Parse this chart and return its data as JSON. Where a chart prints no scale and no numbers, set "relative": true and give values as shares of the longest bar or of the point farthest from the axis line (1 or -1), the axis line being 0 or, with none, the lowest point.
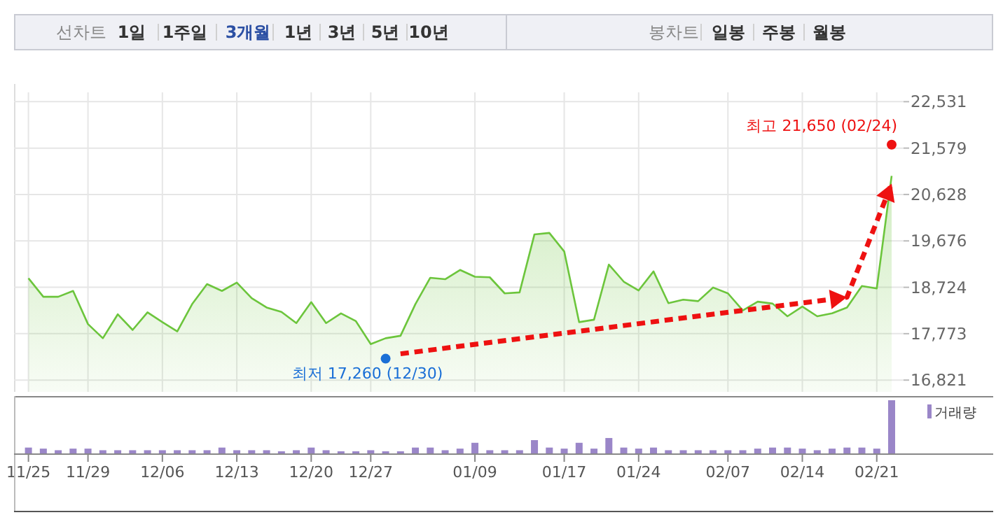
{
  "chart_data": [
    {
      "type": "other",
      "annotations": [
        "선차트",
        "1일",
        "1주일",
        "3개월",
        "1년",
        "3년",
        "5년",
        "10년",
        "봉차트",
        "일봉",
        "주봉",
        "월봉"
      ],
      "colors": [
        "#888888",
        "#333333",
        "#333333",
        "#2b4fa3",
        "#333333",
        "#333333",
        "#333333",
        "#333333",
        "#888888",
        "#333333",
        "#333333",
        "#333333"
      ]
    },
    {
      "type": "area",
      "categories": [
        "11/25",
        null,
        null,
        null,
        "11/29",
        null,
        null,
        null,
        null,
        "12/06",
        null,
        null,
        null,
        null,
        "12/13",
        null,
        null,
        null,
        null,
        "12/20",
        null,
        null,
        null,
        "12/27",
        null,
        null,
        null,
        null,
        null,
        null,
        "01/09",
        null,
        null,
        null,
        null,
        null,
        "01/17",
        null,
        null,
        null,
        null,
        "01/24",
        null,
        null,
        null,
        null,
        null,
        "02/07",
        null,
        null,
        null,
        null,
        "02/14",
        null,
        null,
        null,
        null,
        "02/21",
        null
      ],
      "series": [
        {
          "type": "area",
          "color": "#6cc53c",
          "values": [
            18910,
            18530,
            18530,
            18650,
            17970,
            17680,
            18170,
            17850,
            18210,
            18010,
            17820,
            18380,
            18790,
            18650,
            18820,
            18500,
            18310,
            18220,
            17990,
            18420,
            17990,
            18190,
            18030,
            17560,
            17680,
            17730,
            18380,
            18920,
            18890,
            19080,
            18940,
            18930,
            18600,
            18620,
            19810,
            19840,
            19460,
            18010,
            18060,
            19190,
            18840,
            18660,
            19050,
            18400,
            18470,
            18440,
            18720,
            18600,
            18250,
            18430,
            18390,
            18130,
            18330,
            18130,
            18190,
            18310,
            18750,
            18700,
            21010
          ]
        },
        {
          "type": "scatter",
          "color": "#1a6fd6",
          "values": [
            null,
            null,
            null,
            null,
            null,
            null,
            null,
            null,
            null,
            null,
            null,
            null,
            null,
            null,
            null,
            null,
            null,
            null,
            null,
            null,
            null,
            null,
            null,
            null,
            17260,
            null,
            null,
            null,
            null,
            null,
            null,
            null,
            null,
            null,
            null,
            null,
            null,
            null,
            null,
            null,
            null,
            null,
            null,
            null,
            null,
            null,
            null,
            null,
            null,
            null,
            null,
            null,
            null,
            null,
            null,
            null,
            null,
            null,
            null
          ]
        },
        {
          "type": "scatter",
          "color": "#ee1111",
          "values": [
            null,
            null,
            null,
            null,
            null,
            null,
            null,
            null,
            null,
            null,
            null,
            null,
            null,
            null,
            null,
            null,
            null,
            null,
            null,
            null,
            null,
            null,
            null,
            null,
            null,
            null,
            null,
            null,
            null,
            null,
            null,
            null,
            null,
            null,
            null,
            null,
            null,
            null,
            null,
            null,
            null,
            null,
            null,
            null,
            null,
            null,
            null,
            null,
            null,
            null,
            null,
            null,
            null,
            null,
            null,
            null,
            null,
            null,
            21650
          ]
        },
        {
          "type": "line",
          "color": "#ee1111",
          "line_style": "dashed",
          "values": [
            null,
            null,
            null,
            null,
            null,
            null,
            null,
            null,
            null,
            null,
            null,
            null,
            null,
            null,
            null,
            null,
            null,
            null,
            null,
            null,
            null,
            null,
            null,
            null,
            null,
            17360,
            null,
            null,
            null,
            null,
            null,
            null,
            null,
            null,
            null,
            null,
            null,
            null,
            null,
            null,
            null,
            null,
            null,
            null,
            null,
            null,
            null,
            null,
            null,
            null,
            null,
            null,
            null,
            null,
            null,
            18520,
            null,
            null,
            20850
          ]
        }
      ],
      "ylim": [
        16580,
        22550
      ],
      "yticks": [
        {
          "value": 16821,
          "label": "16,821"
        },
        {
          "value": 17773,
          "label": "17,773"
        },
        {
          "value": 18724,
          "label": "18,724"
        },
        {
          "value": 19676,
          "label": "19,676"
        },
        {
          "value": 20628,
          "label": "20,628"
        },
        {
          "value": 21579,
          "label": "21,579"
        },
        {
          "value": 22531,
          "label": "22,531"
        }
      ],
      "annotations": [
        "최저 17,260 (12/30)",
        "최고 21,650 (02/24)"
      ],
      "grid": true
    },
    {
      "type": "bar",
      "relative": true,
      "categories": [
        null,
        null,
        null,
        null,
        null,
        null,
        null,
        null,
        null,
        null,
        null,
        null,
        null,
        null,
        null,
        null,
        null,
        null,
        null,
        null,
        null,
        null,
        null,
        null,
        null,
        null,
        null,
        null,
        null,
        null,
        null,
        null,
        null,
        null,
        null,
        null,
        null,
        null,
        null,
        null,
        null,
        null,
        null,
        null,
        null,
        null,
        null,
        null,
        null,
        null,
        null,
        null,
        null,
        null,
        null,
        null,
        null,
        null,
        null
      ],
      "series": [
        {
          "name": "거래량",
          "color": "#9a86c8",
          "values": [
            0.11,
            0.09,
            0.06,
            0.09,
            0.09,
            0.06,
            0.06,
            0.06,
            0.06,
            0.06,
            0.06,
            0.06,
            0.06,
            0.11,
            0.06,
            0.06,
            0.06,
            0.04,
            0.06,
            0.11,
            0.06,
            0.04,
            0.04,
            0.06,
            0.04,
            0.04,
            0.11,
            0.11,
            0.06,
            0.09,
            0.2,
            0.06,
            0.06,
            0.06,
            0.25,
            0.11,
            0.09,
            0.2,
            0.09,
            0.29,
            0.11,
            0.09,
            0.11,
            0.06,
            0.06,
            0.06,
            0.06,
            0.06,
            0.06,
            0.09,
            0.11,
            0.11,
            0.09,
            0.06,
            0.09,
            0.11,
            0.11,
            0.09,
            1
          ]
        }
      ],
      "legend": "top right"
    }
  ]
}
